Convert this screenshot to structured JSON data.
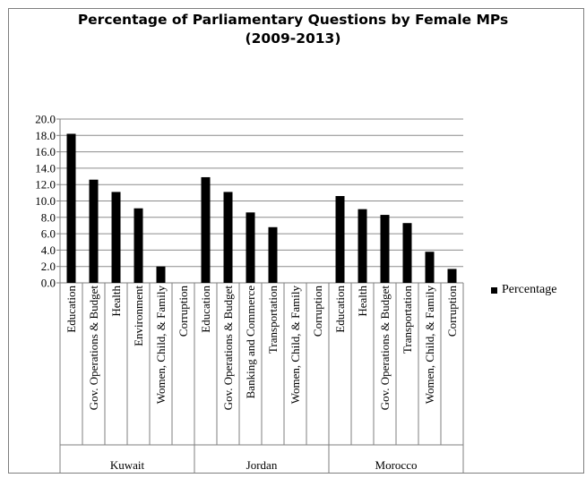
{
  "chart_data": {
    "type": "bar",
    "title_line1": "Percentage of Parliamentary Questions by Female MPs",
    "title_line2": "(2009-2013)",
    "ylim": [
      0,
      20
    ],
    "yticks": [
      "20.0",
      "18.0",
      "16.0",
      "14.0",
      "12.0",
      "10.0",
      "8.0",
      "6.0",
      "4.0",
      "2.0",
      "0.0"
    ],
    "grid": true,
    "legend_position": "right",
    "series": [
      {
        "name": "Percentage",
        "color": "#000000"
      }
    ],
    "groups": [
      {
        "name": "Kuwait",
        "categories": [
          "Education",
          "Gov. Operations & Budget",
          "Health",
          "Environment",
          "Women, Child, & Family",
          "Corruption"
        ],
        "values": [
          18.2,
          12.6,
          11.1,
          9.1,
          2.0,
          0
        ]
      },
      {
        "name": "Jordan",
        "categories": [
          "Education",
          "Gov. Operations & Budget",
          "Banking and Commerce",
          "Transportation",
          "Women, Child, & Family",
          "Corruption"
        ],
        "values": [
          12.9,
          11.1,
          8.6,
          6.8,
          0,
          0
        ]
      },
      {
        "name": "Morocco",
        "categories": [
          "Education",
          "Health",
          "Gov. Operations & Budget",
          "Transportation",
          "Women, Child, & Family",
          "Corruption"
        ],
        "values": [
          10.6,
          9.0,
          8.3,
          7.3,
          3.8,
          1.7
        ]
      }
    ]
  }
}
